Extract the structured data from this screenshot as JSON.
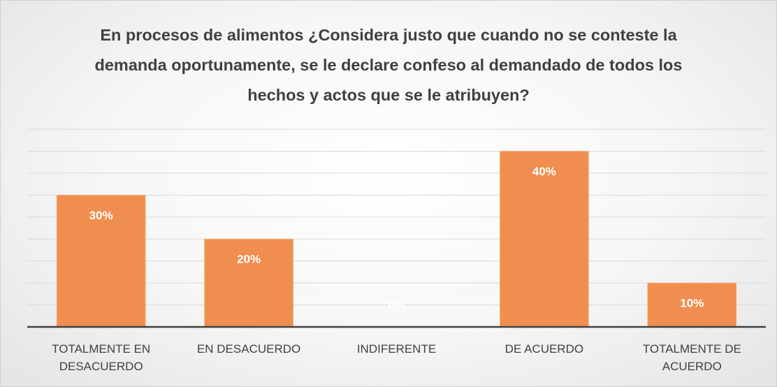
{
  "chart_data": {
    "type": "bar",
    "title": "En procesos de alimentos ¿Considera justo que cuando no se conteste la demanda oportunamente, se le declare confeso al demandado de todos los hechos y actos que se le atribuyen?",
    "categories": [
      "TOTALMENTE EN DESACUERDO",
      "EN DESACUERDO",
      "INDIFERENTE",
      "DE ACUERDO",
      "TOTALMENTE DE ACUERDO"
    ],
    "values": [
      30,
      20,
      0,
      40,
      10
    ],
    "value_labels": [
      "30%",
      "20%",
      "0%",
      "40%",
      "10%"
    ],
    "color": "#ef8e4f",
    "ylim": [
      0,
      45
    ],
    "yticks": [
      0,
      5,
      10,
      15,
      20,
      25,
      30,
      35,
      40,
      45
    ],
    "grid": true
  }
}
